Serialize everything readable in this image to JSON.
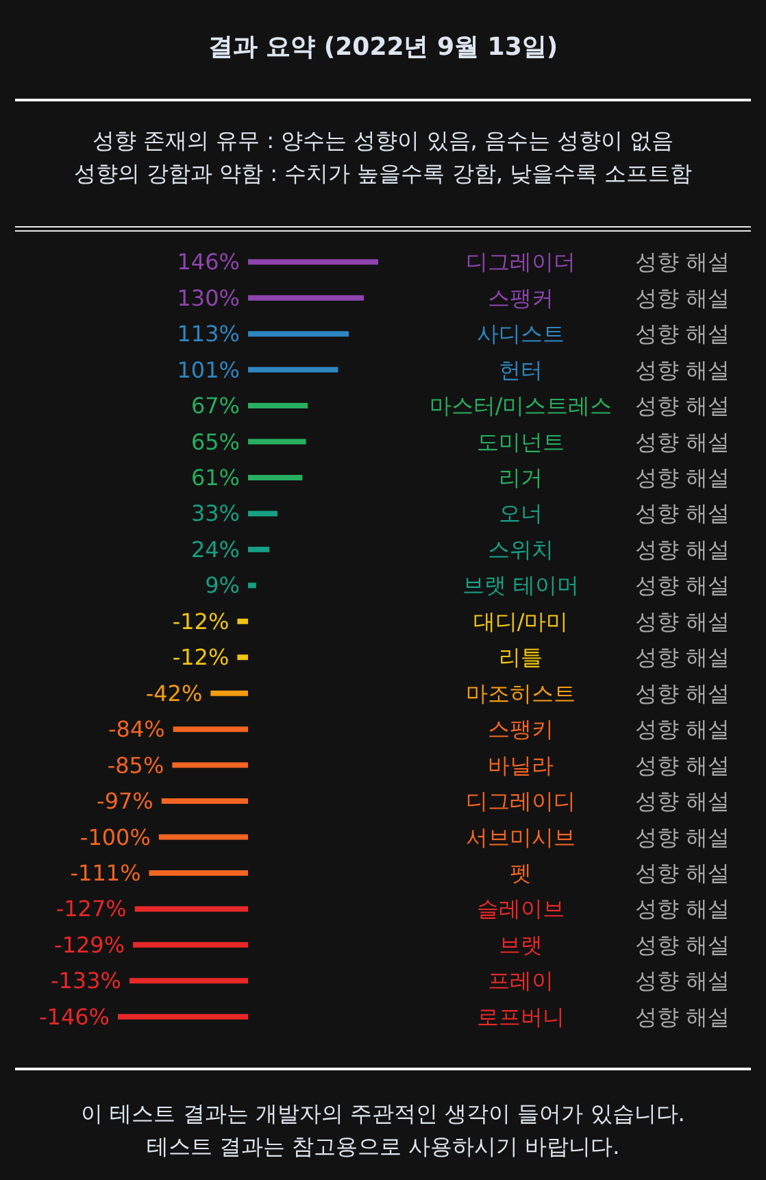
{
  "chart_data": {
    "type": "bar",
    "orientation": "horizontal",
    "title": "결과 요약 (2022년 9월 13일)",
    "subtitle": "성향 존재의 유무 : 양수는 성향이 있음, 음수는 성향이 없음\n성향의 강함과 약함 : 수치가 높을수록 강함, 낮을수록 소프트함",
    "categories": [
      "디그레이더",
      "스팽커",
      "사디스트",
      "헌터",
      "마스터/미스트레스",
      "도미넌트",
      "리거",
      "오너",
      "스위치",
      "브랫 테이머",
      "대디/마미",
      "리틀",
      "마조히스트",
      "스팽키",
      "바닐라",
      "디그레이디",
      "서브미시브",
      "펫",
      "슬레이브",
      "브랫",
      "프레이",
      "로프버니"
    ],
    "values": [
      146,
      130,
      113,
      101,
      67,
      65,
      61,
      33,
      24,
      9,
      -12,
      -12,
      -42,
      -84,
      -85,
      -97,
      -100,
      -111,
      -127,
      -129,
      -133,
      -146
    ],
    "value_labels": [
      "146%",
      "130%",
      "113%",
      "101%",
      "67%",
      "65%",
      "61%",
      "33%",
      "24%",
      "9%",
      "-12%",
      "-12%",
      "-42%",
      "-84%",
      "-85%",
      "-97%",
      "-100%",
      "-111%",
      "-127%",
      "-129%",
      "-133%",
      "-146%"
    ],
    "colors": [
      "#8e44ad",
      "#8e44ad",
      "#2e86c1",
      "#2e86c1",
      "#27ae60",
      "#27ae60",
      "#27ae60",
      "#16a085",
      "#16a085",
      "#16a085",
      "#f1c40f",
      "#f1c40f",
      "#f39c12",
      "#f26522",
      "#f26522",
      "#f26522",
      "#f26522",
      "#f26522",
      "#e82828",
      "#e82828",
      "#e82828",
      "#e82828"
    ],
    "annotations": [
      "성향 해설",
      "성향 해설",
      "성향 해설",
      "성향 해설",
      "성향 해설",
      "성향 해설",
      "성향 해설",
      "성향 해설",
      "성향 해설",
      "성향 해설",
      "성향 해설",
      "성향 해설",
      "성향 해설",
      "성향 해설",
      "성향 해설",
      "성향 해설",
      "성향 해설",
      "성향 해설",
      "성향 해설",
      "성향 해설",
      "성향 해설",
      "성향 해설",
      "이 테스트 결과는 개발자의 주관적인 생각이 들어가 있습니다.",
      "테스트 결과는 참고용으로 사용하시기 바랍니다."
    ]
  }
}
